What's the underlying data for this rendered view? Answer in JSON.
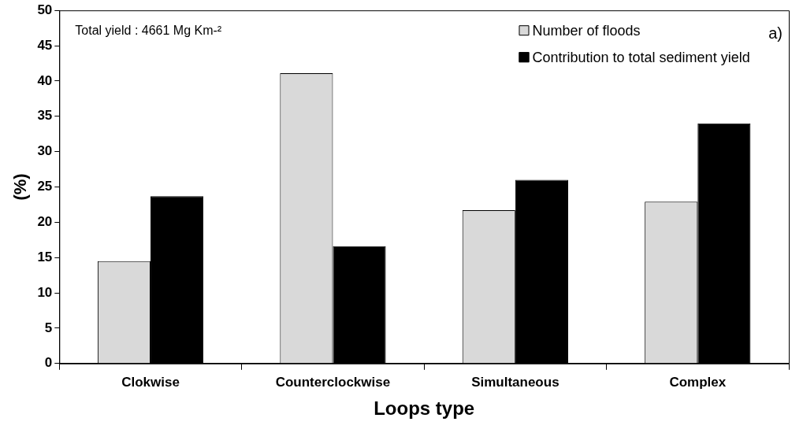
{
  "chart_data": {
    "type": "bar",
    "xlabel": "Loops type",
    "ylabel": "(%)",
    "categories": [
      "Clokwise",
      "Counterclockwise",
      "Simultaneous",
      "Complex"
    ],
    "series": [
      {
        "name": "Number of floods",
        "color": "#d9d9d9",
        "values": [
          14.5,
          41.1,
          21.7,
          22.9
        ]
      },
      {
        "name": "Contribution to total sediment yield",
        "color": "#000000",
        "values": [
          23.7,
          16.6,
          26.0,
          34.0
        ]
      }
    ],
    "ylim": [
      0,
      50
    ],
    "yticks": [
      0,
      5,
      10,
      15,
      20,
      25,
      30,
      35,
      40,
      45,
      50
    ],
    "grid": false,
    "legend": "top right",
    "annotations": [
      "Total yield : 4661 Mg Km-²",
      "a)"
    ]
  }
}
